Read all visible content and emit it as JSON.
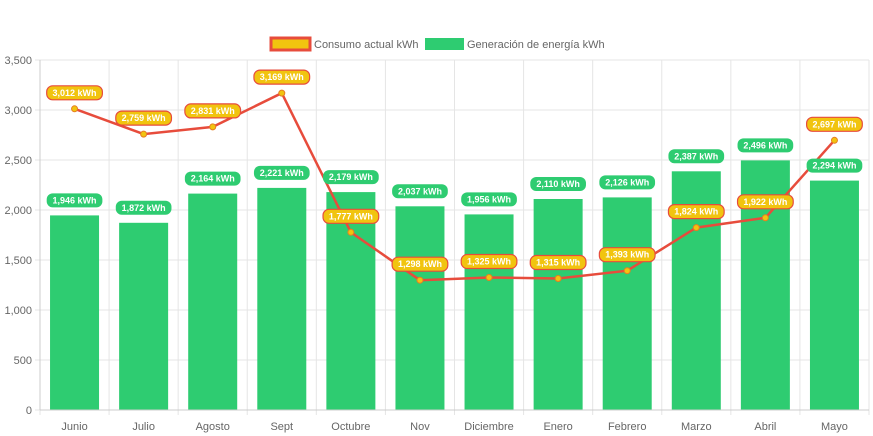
{
  "chart_data": {
    "type": "bar",
    "categories": [
      "Junio",
      "Julio",
      "Agosto",
      "Sept",
      "Octubre",
      "Nov",
      "Diciembre",
      "Enero",
      "Febrero",
      "Marzo",
      "Abril",
      "Mayo"
    ],
    "series": [
      {
        "name": "Consumo actual kWh",
        "type": "line",
        "color": "#e74c3c",
        "fill": "#f1c40f",
        "values": [
          3012,
          2759,
          2831,
          3169,
          1777,
          1298,
          1325,
          1315,
          1393,
          1824,
          1922,
          2697
        ]
      },
      {
        "name": "Generación de energía kWh",
        "type": "bar",
        "color": "#2ecc71",
        "values": [
          1946,
          1872,
          2164,
          2221,
          2179,
          2037,
          1956,
          2110,
          2126,
          2387,
          2496,
          2294
        ]
      }
    ],
    "unit": "kWh",
    "ylim": [
      0,
      3500
    ],
    "yticks": [
      "0",
      "500",
      "1,000",
      "1,500",
      "2,000",
      "2,500",
      "3,000",
      "3,500"
    ],
    "ytick_values": [
      0,
      500,
      1000,
      1500,
      2000,
      2500,
      3000,
      3500
    ],
    "legend": "top",
    "grid": true
  }
}
